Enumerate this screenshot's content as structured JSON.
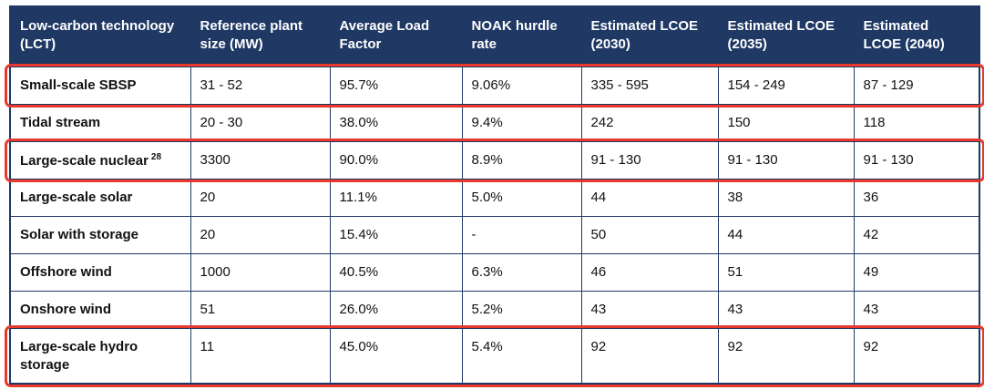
{
  "colors": {
    "header_bg": "#1f3864",
    "border": "#1f3864",
    "highlight": "#e8392d",
    "header_text": "#ffffff",
    "body_text": "#111111"
  },
  "table": {
    "columns": [
      "Low-carbon technology (LCT)",
      "Reference plant size (MW)",
      "Average Load Factor",
      "NOAK hurdle rate",
      "Estimated LCOE (2030)",
      "Estimated LCOE (2035)",
      "Estimated LCOE (2040)"
    ],
    "rows": [
      {
        "lct": "Small-scale SBSP",
        "sup": "",
        "highlighted": true,
        "values": [
          "31 - 52",
          "95.7%",
          "9.06%",
          "335 - 595",
          "154 - 249",
          "87 - 129"
        ]
      },
      {
        "lct": "Tidal stream",
        "sup": "",
        "highlighted": false,
        "values": [
          "20 - 30",
          "38.0%",
          "9.4%",
          "242",
          "150",
          "118"
        ]
      },
      {
        "lct": "Large-scale nuclear",
        "sup": "28",
        "highlighted": true,
        "values": [
          "3300",
          "90.0%",
          "8.9%",
          "91 - 130",
          "91 - 130",
          "91 - 130"
        ]
      },
      {
        "lct": "Large-scale solar",
        "sup": "",
        "highlighted": false,
        "values": [
          "20",
          "11.1%",
          "5.0%",
          "44",
          "38",
          "36"
        ]
      },
      {
        "lct": "Solar with storage",
        "sup": "",
        "highlighted": false,
        "values": [
          "20",
          "15.4%",
          "-",
          "50",
          "44",
          "42"
        ]
      },
      {
        "lct": "Offshore wind",
        "sup": "",
        "highlighted": false,
        "values": [
          "1000",
          "40.5%",
          "6.3%",
          "46",
          "51",
          "49"
        ]
      },
      {
        "lct": "Onshore wind",
        "sup": "",
        "highlighted": false,
        "values": [
          "51",
          "26.0%",
          "5.2%",
          "43",
          "43",
          "43"
        ]
      },
      {
        "lct": "Large-scale hydro storage",
        "sup": "",
        "highlighted": true,
        "values": [
          "11",
          "45.0%",
          "5.4%",
          "92",
          "92",
          "92"
        ]
      }
    ]
  }
}
